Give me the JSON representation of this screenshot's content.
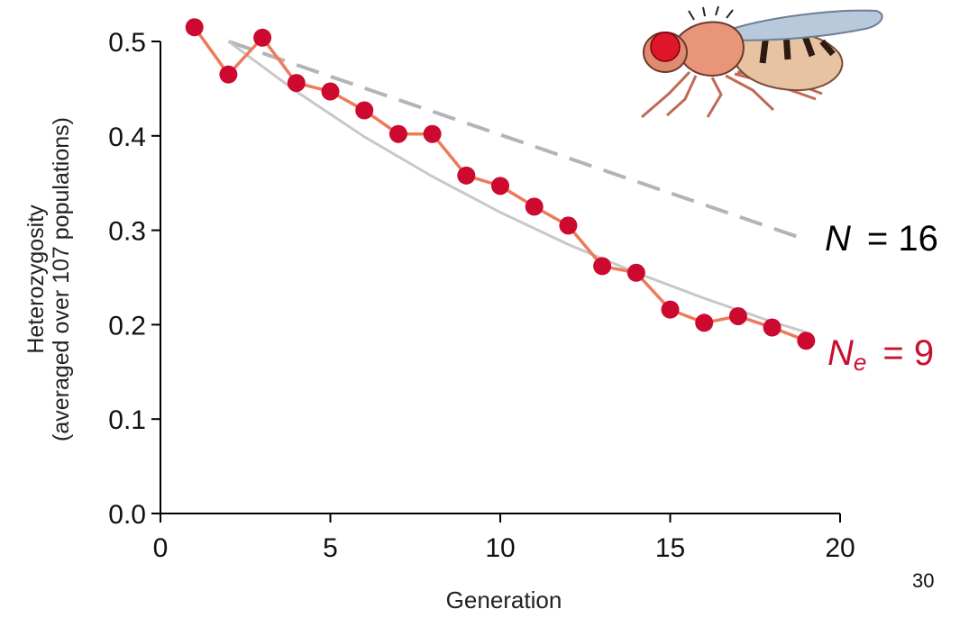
{
  "chart_data": {
    "type": "line",
    "xlabel": "Generation",
    "ylabel": [
      "Heterozygosity",
      "(averaged over 107 populations)"
    ],
    "xlim": [
      0,
      20
    ],
    "ylim": [
      0,
      0.5
    ],
    "xticks": [
      0,
      5,
      10,
      15,
      20
    ],
    "yticks": [
      "0.0",
      "0.1",
      "0.2",
      "0.3",
      "0.4",
      "0.5"
    ],
    "series": [
      {
        "kind": "observed",
        "color": "#cc0a2f",
        "line_color": "#ee7a5a",
        "x": [
          1,
          2,
          3,
          4,
          5,
          6,
          7,
          8,
          9,
          10,
          11,
          12,
          13,
          14,
          15,
          16,
          17,
          18,
          19
        ],
        "y": [
          0.515,
          0.465,
          0.504,
          0.456,
          0.447,
          0.427,
          0.402,
          0.402,
          0.358,
          0.347,
          0.325,
          0.305,
          0.262,
          0.255,
          0.216,
          0.202,
          0.209,
          0.197,
          0.183
        ]
      },
      {
        "kind": "expected_N",
        "color": "#b4b4b4",
        "dash": true,
        "x": [
          2,
          19
        ],
        "y": [
          0.5,
          0.29
        ]
      },
      {
        "kind": "expected_Ne",
        "color": "#c8c8c8",
        "dash": false,
        "x": [
          2,
          4,
          6,
          8,
          10,
          12,
          14,
          16,
          18,
          19
        ],
        "y": [
          0.5,
          0.447,
          0.399,
          0.357,
          0.319,
          0.285,
          0.255,
          0.228,
          0.203,
          0.192
        ]
      }
    ],
    "annotations": {
      "n_label": {
        "symbol": "N",
        "text": "= 16"
      },
      "ne_label": {
        "symbol": "N",
        "subscript": "e",
        "text": "= 9"
      }
    }
  },
  "page_number": "30"
}
